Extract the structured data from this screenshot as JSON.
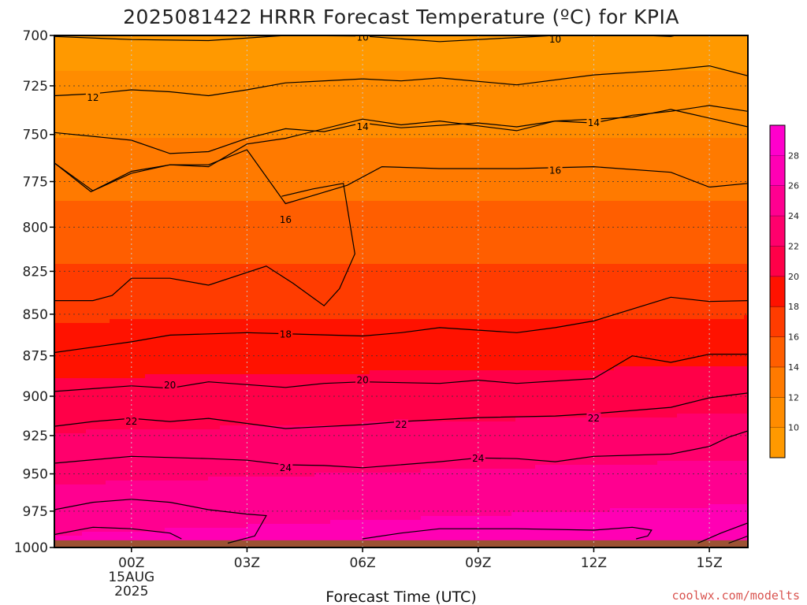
{
  "chart_data": {
    "type": "filled-contour",
    "title": "2025081422 HRRR Forecast Temperature (ºC) for KPIA",
    "xlabel": "Forecast Time (UTC)",
    "ylabel": "",
    "x_unit": "hours from 00Z 15AUG2025",
    "xlim": [
      -2.0,
      16.0
    ],
    "y_scale": "log-pressure (inverted)",
    "ylim": [
      1000,
      700
    ],
    "x_ticks": [
      {
        "value": 0,
        "label": "00Z",
        "sub1": "15AUG",
        "sub2": "2025"
      },
      {
        "value": 3,
        "label": "03Z"
      },
      {
        "value": 6,
        "label": "06Z"
      },
      {
        "value": 9,
        "label": "09Z"
      },
      {
        "value": 12,
        "label": "12Z"
      },
      {
        "value": 15,
        "label": "15Z"
      }
    ],
    "y_ticks": [
      {
        "value": 700,
        "label": "700"
      },
      {
        "value": 725,
        "label": "725"
      },
      {
        "value": 750,
        "label": "750"
      },
      {
        "value": 775,
        "label": "775"
      },
      {
        "value": 800,
        "label": "800"
      },
      {
        "value": 825,
        "label": "825"
      },
      {
        "value": 850,
        "label": "850"
      },
      {
        "value": 875,
        "label": "875"
      },
      {
        "value": 900,
        "label": "900"
      },
      {
        "value": 925,
        "label": "925"
      },
      {
        "value": 950,
        "label": "950"
      },
      {
        "value": 975,
        "label": "975"
      },
      {
        "value": 1000,
        "label": "1000"
      }
    ],
    "grid": true,
    "ground_color": "#9c5233",
    "levels": [
      {
        "value": 8,
        "color": "#ff9900"
      },
      {
        "value": 10,
        "color": "#ff8c00"
      },
      {
        "value": 12,
        "color": "#ff7a00"
      },
      {
        "value": 14,
        "color": "#ff5e00"
      },
      {
        "value": 16,
        "color": "#ff3c00"
      },
      {
        "value": 18,
        "color": "#ff1200"
      },
      {
        "value": 20,
        "color": "#ff0048"
      },
      {
        "value": 22,
        "color": "#ff006c"
      },
      {
        "value": 24,
        "color": "#ff0090"
      },
      {
        "value": 26,
        "color": "#ff00b4"
      },
      {
        "value": 28,
        "color": "#ff00cc"
      }
    ],
    "contours": [
      {
        "value": 10,
        "points": [
          [
            -2,
            700.5
          ],
          [
            0,
            702
          ],
          [
            2,
            702.5
          ],
          [
            4,
            700
          ],
          [
            6,
            700.3
          ],
          [
            8,
            703
          ],
          [
            10,
            701
          ],
          [
            12,
            699
          ],
          [
            14,
            700.5
          ],
          [
            15,
            696.5
          ],
          [
            16,
            697.5
          ]
        ]
      },
      {
        "value": 12,
        "points": [
          [
            -2,
            730
          ],
          [
            -1,
            729
          ],
          [
            0,
            727
          ],
          [
            1,
            728
          ],
          [
            2,
            730
          ],
          [
            3,
            727
          ],
          [
            4,
            723.5
          ],
          [
            6,
            721.5
          ],
          [
            7,
            722.5
          ],
          [
            8,
            721
          ],
          [
            10,
            724.5
          ],
          [
            12,
            719.5
          ],
          [
            14,
            717
          ],
          [
            15,
            715
          ],
          [
            16,
            720
          ]
        ]
      },
      {
        "value": 14,
        "points": [
          [
            -2,
            749
          ],
          [
            0,
            753
          ],
          [
            1,
            760
          ],
          [
            2,
            759
          ],
          [
            3,
            752
          ],
          [
            4,
            747
          ],
          [
            5,
            748.5
          ],
          [
            6,
            744
          ],
          [
            7,
            746.5
          ],
          [
            9,
            744
          ],
          [
            10,
            746
          ],
          [
            11,
            743
          ],
          [
            13,
            741
          ],
          [
            14,
            737
          ],
          [
            16,
            746
          ]
        ]
      },
      {
        "value": 16,
        "points": [
          [
            -2,
            765
          ],
          [
            -1,
            780
          ],
          [
            0,
            770.5
          ],
          [
            1,
            766
          ],
          [
            2,
            767
          ],
          [
            3,
            755
          ],
          [
            4,
            752
          ],
          [
            6,
            742
          ],
          [
            7,
            745
          ],
          [
            8,
            743
          ],
          [
            10,
            748
          ],
          [
            11,
            743
          ],
          [
            12,
            744
          ],
          [
            13,
            740
          ],
          [
            14,
            738
          ],
          [
            15,
            735
          ],
          [
            16,
            738
          ]
        ]
      },
      {
        "value": 16,
        "points": [
          [
            -2,
            765
          ],
          [
            -1.05,
            780.5
          ],
          [
            0,
            769.5
          ],
          [
            1,
            766
          ],
          [
            2,
            766
          ],
          [
            3,
            758
          ],
          [
            4,
            787
          ],
          [
            4.8,
            782
          ],
          [
            5.6,
            777
          ],
          [
            6.5,
            767
          ],
          [
            8,
            768
          ],
          [
            10,
            768
          ],
          [
            12,
            767
          ],
          [
            14,
            770
          ],
          [
            15,
            778
          ],
          [
            16,
            776
          ]
        ]
      },
      {
        "value": 16,
        "points": [
          [
            3.9,
            783
          ],
          [
            4.7,
            779
          ],
          [
            5.5,
            776
          ],
          [
            5.8,
            815
          ],
          [
            5.4,
            835
          ],
          [
            5,
            845
          ],
          [
            4.2,
            832
          ],
          [
            3.5,
            822
          ],
          [
            2,
            833
          ],
          [
            1,
            829
          ],
          [
            0,
            829
          ],
          [
            -0.5,
            839
          ],
          [
            -1,
            842
          ],
          [
            -2,
            842
          ]
        ]
      },
      {
        "value": 18,
        "points": [
          [
            -2,
            873
          ],
          [
            0,
            866.5
          ],
          [
            1,
            862.5
          ],
          [
            3,
            861
          ],
          [
            6,
            863
          ],
          [
            7,
            861
          ],
          [
            8,
            858
          ],
          [
            10,
            861
          ],
          [
            11,
            858
          ],
          [
            12,
            854
          ],
          [
            14,
            840
          ],
          [
            15,
            842.5
          ],
          [
            16,
            842
          ]
        ]
      },
      {
        "value": 20,
        "points": [
          [
            -2,
            897
          ],
          [
            0,
            893.5
          ],
          [
            1,
            895
          ],
          [
            2,
            891
          ],
          [
            4,
            894.5
          ],
          [
            5,
            892
          ],
          [
            6,
            891
          ],
          [
            8,
            892
          ],
          [
            9,
            890
          ],
          [
            10,
            892
          ],
          [
            12,
            889
          ],
          [
            13,
            875
          ],
          [
            14,
            879
          ],
          [
            15,
            874
          ],
          [
            16,
            874
          ]
        ]
      },
      {
        "value": 22,
        "points": [
          [
            -2,
            919
          ],
          [
            -1,
            916
          ],
          [
            0,
            914
          ],
          [
            1,
            916
          ],
          [
            2,
            914
          ],
          [
            4,
            920.5
          ],
          [
            6,
            918
          ],
          [
            7,
            916
          ],
          [
            9,
            913.5
          ],
          [
            11,
            912.5
          ],
          [
            12,
            911
          ],
          [
            14,
            907
          ],
          [
            15,
            901
          ],
          [
            16,
            898
          ]
        ]
      },
      {
        "value": 24,
        "points": [
          [
            -2,
            943
          ],
          [
            0,
            938.5
          ],
          [
            2,
            940
          ],
          [
            3,
            941
          ],
          [
            4,
            944
          ],
          [
            5,
            944.5
          ],
          [
            6,
            946
          ],
          [
            8,
            942
          ],
          [
            9,
            939.5
          ],
          [
            10,
            940
          ],
          [
            11,
            942
          ],
          [
            12,
            938.5
          ],
          [
            14,
            937
          ],
          [
            15,
            932
          ],
          [
            15.5,
            926
          ],
          [
            16,
            922
          ]
        ]
      },
      {
        "value": 26,
        "points": [
          [
            -2,
            974
          ],
          [
            -1,
            969
          ],
          [
            0,
            967
          ],
          [
            1,
            969
          ],
          [
            2,
            974
          ],
          [
            3,
            977
          ],
          [
            3.5,
            978
          ],
          [
            3.2,
            992
          ],
          [
            2.5,
            997
          ]
        ]
      },
      {
        "value": 28,
        "points": [
          [
            -2,
            991
          ],
          [
            -1,
            986
          ],
          [
            0,
            987
          ],
          [
            1,
            990
          ],
          [
            1.3,
            994
          ]
        ]
      },
      {
        "value": 26,
        "points": [
          [
            6,
            994
          ],
          [
            7,
            990
          ],
          [
            8,
            987
          ],
          [
            10,
            987
          ],
          [
            12,
            988
          ],
          [
            13,
            986
          ],
          [
            13.5,
            988
          ],
          [
            13.4,
            992
          ],
          [
            13.1,
            994
          ]
        ]
      },
      {
        "value": 26,
        "points": [
          [
            14.7,
            997
          ],
          [
            15.3,
            990
          ],
          [
            16,
            983
          ]
        ]
      },
      {
        "value": 28,
        "points": [
          [
            15.5,
            997
          ],
          [
            16,
            992
          ]
        ]
      }
    ],
    "contour_labels": [
      {
        "text": "10",
        "x": 6.0,
        "p": 701
      },
      {
        "text": "10",
        "x": 11.0,
        "p": 702
      },
      {
        "text": "12",
        "x": -1.0,
        "p": 731
      },
      {
        "text": "14",
        "x": 6.0,
        "p": 746
      },
      {
        "text": "14",
        "x": 12.0,
        "p": 744
      },
      {
        "text": "16",
        "x": 11.0,
        "p": 769
      },
      {
        "text": "16",
        "x": 4.0,
        "p": 796
      },
      {
        "text": "18",
        "x": 4.0,
        "p": 862
      },
      {
        "text": "20",
        "x": 1.0,
        "p": 893
      },
      {
        "text": "20",
        "x": 6.0,
        "p": 890
      },
      {
        "text": "22",
        "x": 0.0,
        "p": 916
      },
      {
        "text": "22",
        "x": 7.0,
        "p": 918
      },
      {
        "text": "22",
        "x": 12.0,
        "p": 914
      },
      {
        "text": "24",
        "x": 4.0,
        "p": 946
      },
      {
        "text": "24",
        "x": 9.0,
        "p": 940
      }
    ],
    "colorbar": {
      "labels": [
        "10",
        "12",
        "14",
        "16",
        "18",
        "20",
        "22",
        "24",
        "26",
        "28"
      ]
    }
  },
  "credit": "coolwx.com/modelts",
  "credit_color": "#d9534f"
}
